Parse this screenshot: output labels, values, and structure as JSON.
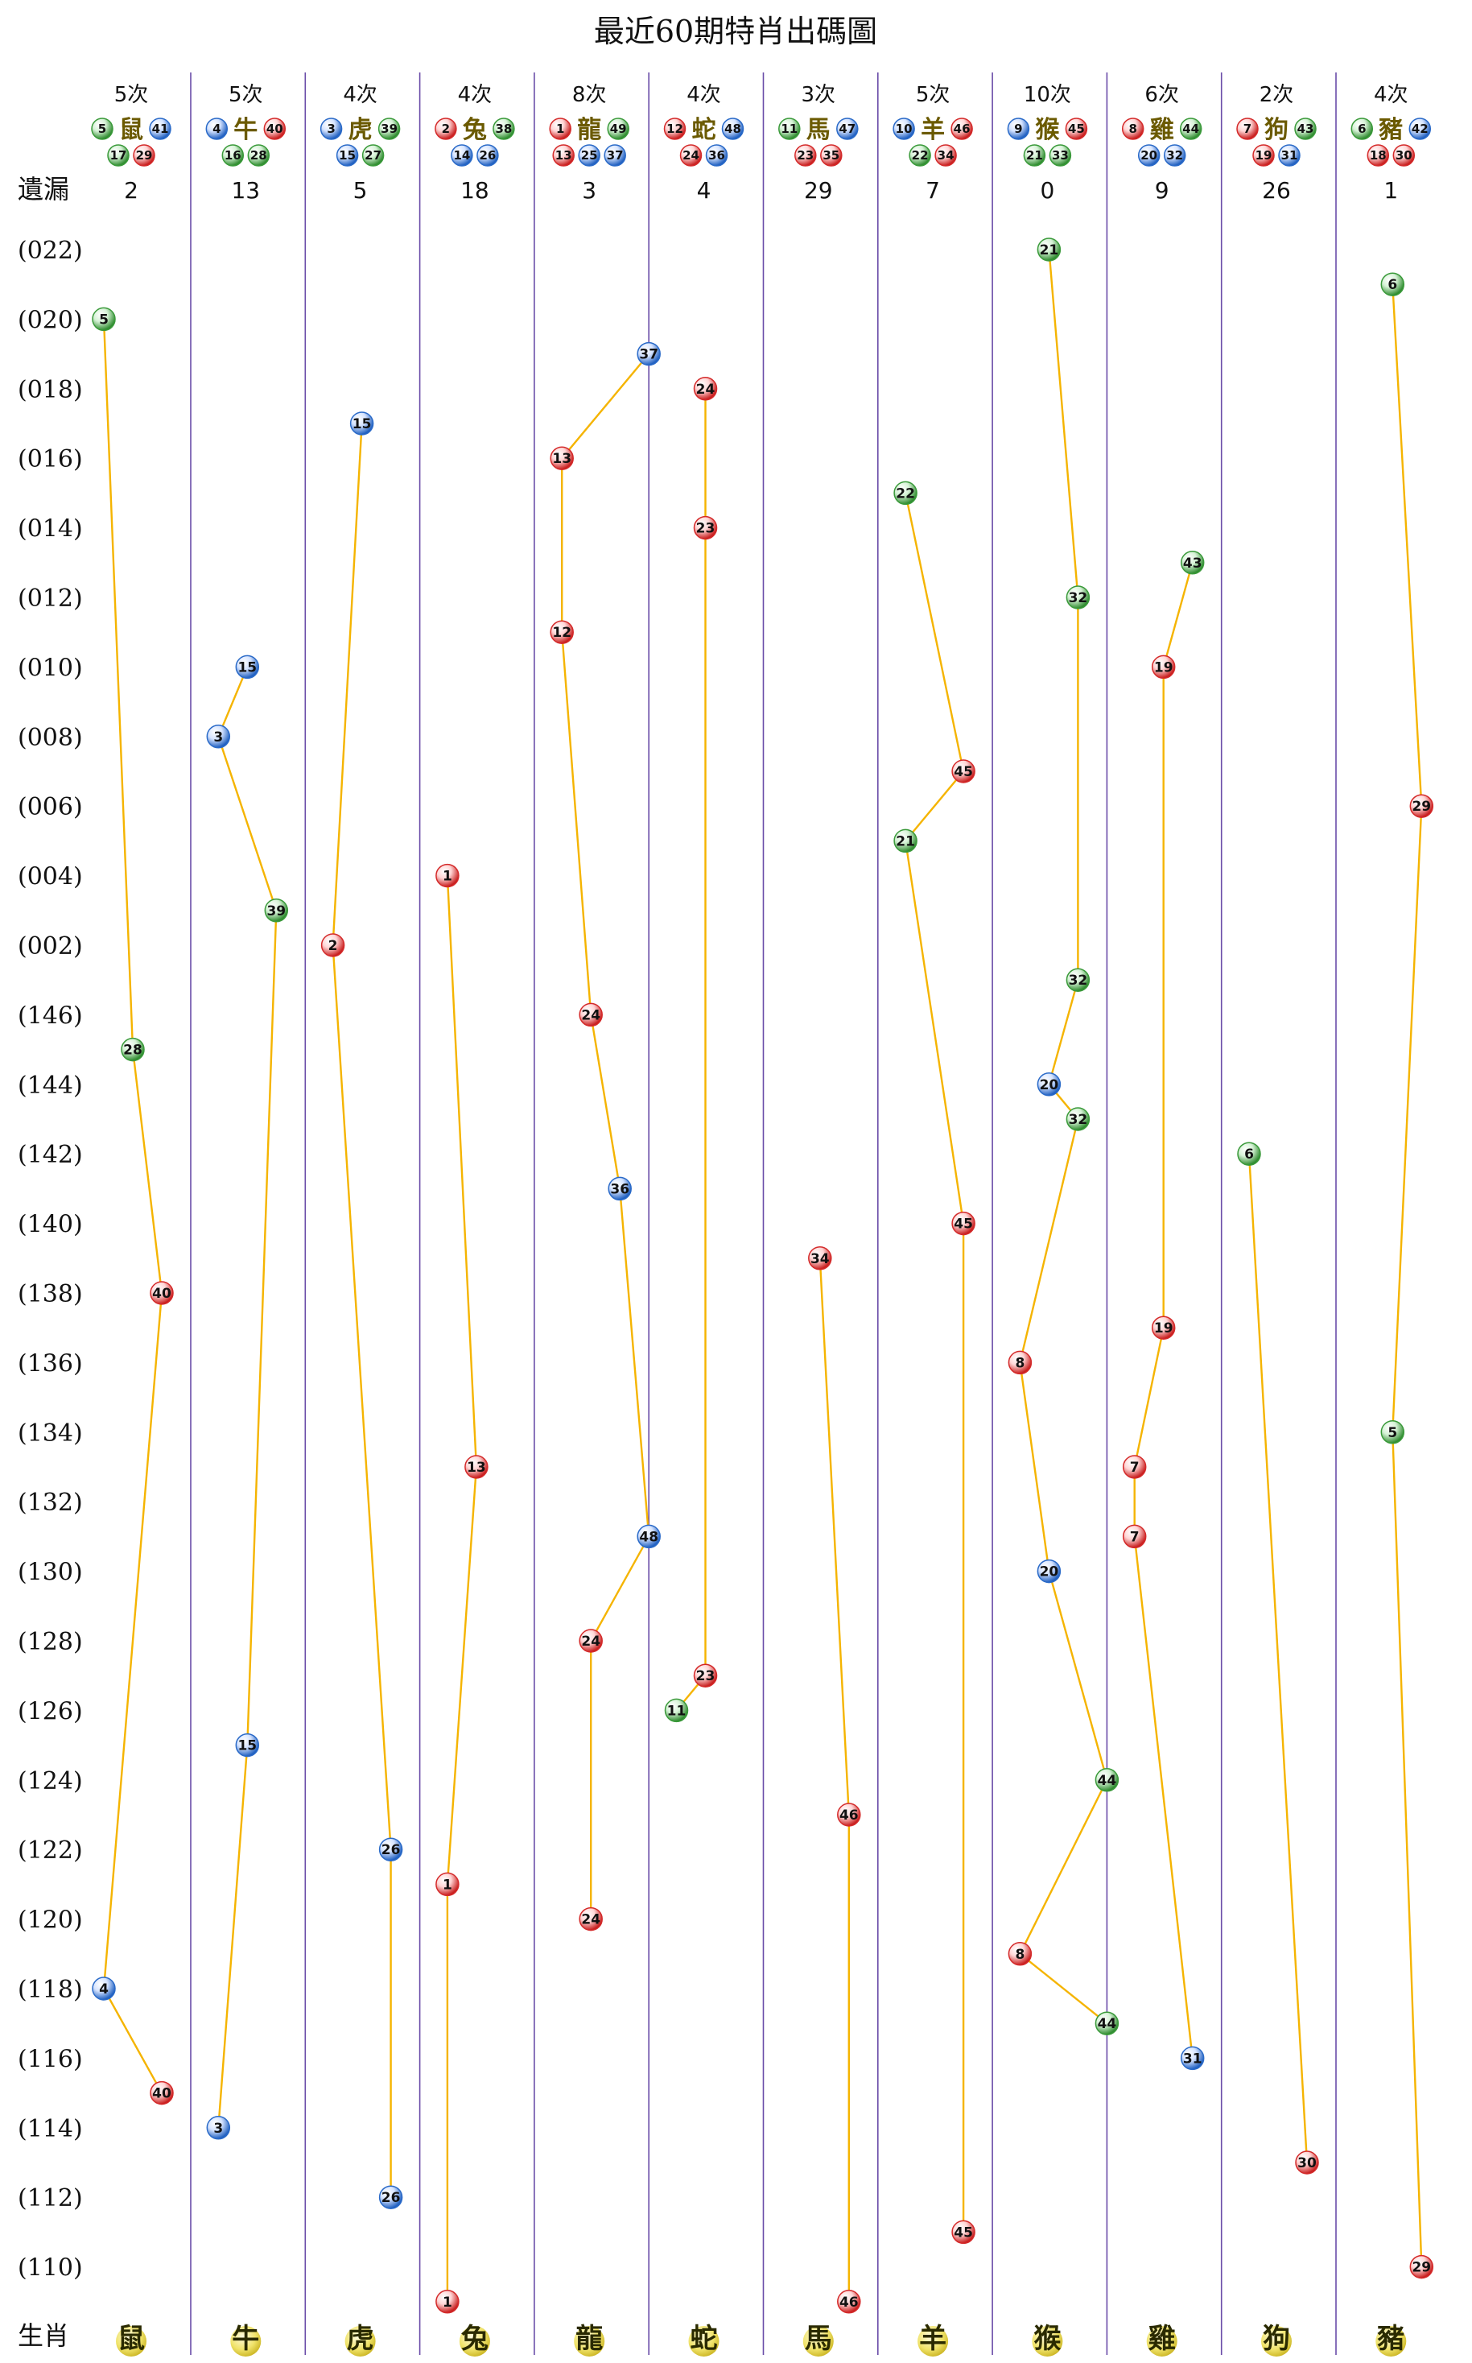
{
  "title": "最近60期特肖出碼圖",
  "omission_label": "遺漏",
  "zodiac_label": "生肖",
  "colors": {
    "line": "#f5b400",
    "divider": "#6a4ca8",
    "red": "#d42a2a",
    "green": "#3a9a3a",
    "blue": "#2a6ac8",
    "head_gold": "#d8cf60"
  },
  "chart_data": {
    "type": "scatter",
    "title": "最近60期特肖出碼圖",
    "row_labels": [
      "(022)",
      "(020)",
      "(018)",
      "(016)",
      "(014)",
      "(012)",
      "(010)",
      "(008)",
      "(006)",
      "(004)",
      "(002)",
      "(146)",
      "(144)",
      "(142)",
      "(140)",
      "(138)",
      "(136)",
      "(134)",
      "(132)",
      "(130)",
      "(128)",
      "(126)",
      "(124)",
      "(122)",
      "(120)",
      "(118)",
      "(116)",
      "(114)",
      "(112)",
      "(110)"
    ],
    "columns": [
      {
        "zodiac": "鼠",
        "count": "5次",
        "omission": "2",
        "numbers": [
          "5",
          "41",
          "17",
          "29"
        ],
        "number_colors": [
          "green",
          "blue",
          "green",
          "red"
        ],
        "points": [
          {
            "row": 2,
            "num": "5",
            "color": "green",
            "offset": 0
          },
          {
            "row": 23,
            "num": "28",
            "color": "green",
            "offset": 1
          },
          {
            "row": 30,
            "num": "40",
            "color": "red",
            "offset": 2
          },
          {
            "row": 50,
            "num": "4",
            "color": "blue",
            "offset": 0
          },
          {
            "row": 53,
            "num": "40",
            "color": "red",
            "offset": 2
          }
        ]
      },
      {
        "zodiac": "牛",
        "count": "5次",
        "omission": "13",
        "numbers": [
          "4",
          "40",
          "16",
          "28"
        ],
        "number_colors": [
          "blue",
          "red",
          "green",
          "green"
        ],
        "points": [
          {
            "row": 12,
            "num": "15",
            "color": "blue",
            "offset": 1
          },
          {
            "row": 14,
            "num": "3",
            "color": "blue",
            "offset": 0
          },
          {
            "row": 19,
            "num": "39",
            "color": "green",
            "offset": 2
          },
          {
            "row": 43,
            "num": "15",
            "color": "blue",
            "offset": 1
          },
          {
            "row": 54,
            "num": "3",
            "color": "blue",
            "offset": 0
          }
        ]
      },
      {
        "zodiac": "虎",
        "count": "4次",
        "omission": "5",
        "numbers": [
          "3",
          "39",
          "15",
          "27"
        ],
        "number_colors": [
          "blue",
          "green",
          "blue",
          "green"
        ],
        "points": [
          {
            "row": 5,
            "num": "15",
            "color": "blue",
            "offset": 1
          },
          {
            "row": 20,
            "num": "2",
            "color": "red",
            "offset": 0
          },
          {
            "row": 46,
            "num": "26",
            "color": "blue",
            "offset": 2
          },
          {
            "row": 56,
            "num": "26",
            "color": "blue",
            "offset": 2
          }
        ]
      },
      {
        "zodiac": "兔",
        "count": "4次",
        "omission": "18",
        "numbers": [
          "2",
          "38",
          "14",
          "26"
        ],
        "number_colors": [
          "red",
          "green",
          "blue",
          "blue"
        ],
        "points": [
          {
            "row": 18,
            "num": "1",
            "color": "red",
            "offset": 0
          },
          {
            "row": 35,
            "num": "13",
            "color": "red",
            "offset": 1
          },
          {
            "row": 47,
            "num": "1",
            "color": "red",
            "offset": 0
          },
          {
            "row": 59,
            "num": "1",
            "color": "red",
            "offset": 0
          }
        ]
      },
      {
        "zodiac": "龍",
        "count": "8次",
        "omission": "3",
        "numbers": [
          "1",
          "49",
          "13",
          "25",
          "37"
        ],
        "number_colors": [
          "red",
          "green",
          "red",
          "blue",
          "blue"
        ],
        "points": [
          {
            "row": 3,
            "num": "37",
            "color": "blue",
            "offset": 3
          },
          {
            "row": 6,
            "num": "13",
            "color": "red",
            "offset": 0
          },
          {
            "row": 11,
            "num": "12",
            "color": "red",
            "offset": 0
          },
          {
            "row": 22,
            "num": "24",
            "color": "red",
            "offset": 1
          },
          {
            "row": 27,
            "num": "36",
            "color": "blue",
            "offset": 2
          },
          {
            "row": 37,
            "num": "48",
            "color": "blue",
            "offset": 3
          },
          {
            "row": 40,
            "num": "24",
            "color": "red",
            "offset": 1
          },
          {
            "row": 48,
            "num": "24",
            "color": "red",
            "offset": 1
          }
        ]
      },
      {
        "zodiac": "蛇",
        "count": "4次",
        "omission": "4",
        "numbers": [
          "12",
          "48",
          "24",
          "36"
        ],
        "number_colors": [
          "red",
          "blue",
          "red",
          "blue"
        ],
        "points": [
          {
            "row": 4,
            "num": "24",
            "color": "red",
            "offset": 1
          },
          {
            "row": 8,
            "num": "23",
            "color": "red",
            "offset": 1
          },
          {
            "row": 41,
            "num": "23",
            "color": "red",
            "offset": 1
          },
          {
            "row": 42,
            "num": "11",
            "color": "green",
            "offset": 0
          }
        ]
      },
      {
        "zodiac": "馬",
        "count": "3次",
        "omission": "29",
        "numbers": [
          "11",
          "47",
          "23",
          "35"
        ],
        "number_colors": [
          "green",
          "blue",
          "red",
          "red"
        ],
        "points": [
          {
            "row": 29,
            "num": "34",
            "color": "red",
            "offset": 1
          },
          {
            "row": 45,
            "num": "46",
            "color": "red",
            "offset": 2
          },
          {
            "row": 59,
            "num": "46",
            "color": "red",
            "offset": 2
          }
        ]
      },
      {
        "zodiac": "羊",
        "count": "5次",
        "omission": "7",
        "numbers": [
          "10",
          "46",
          "22",
          "34"
        ],
        "number_colors": [
          "blue",
          "red",
          "green",
          "red"
        ],
        "points": [
          {
            "row": 7,
            "num": "22",
            "color": "green",
            "offset": 0
          },
          {
            "row": 15,
            "num": "45",
            "color": "red",
            "offset": 2
          },
          {
            "row": 17,
            "num": "21",
            "color": "green",
            "offset": 0
          },
          {
            "row": 28,
            "num": "45",
            "color": "red",
            "offset": 2
          },
          {
            "row": 57,
            "num": "45",
            "color": "red",
            "offset": 2
          }
        ]
      },
      {
        "zodiac": "猴",
        "count": "10次",
        "omission": "0",
        "numbers": [
          "9",
          "45",
          "21",
          "33"
        ],
        "number_colors": [
          "blue",
          "red",
          "green",
          "green"
        ],
        "points": [
          {
            "row": 0,
            "num": "21",
            "color": "green",
            "offset": 1
          },
          {
            "row": 10,
            "num": "32",
            "color": "green",
            "offset": 2
          },
          {
            "row": 21,
            "num": "32",
            "color": "green",
            "offset": 2
          },
          {
            "row": 24,
            "num": "20",
            "color": "blue",
            "offset": 1
          },
          {
            "row": 25,
            "num": "32",
            "color": "green",
            "offset": 2
          },
          {
            "row": 32,
            "num": "8",
            "color": "red",
            "offset": 0
          },
          {
            "row": 38,
            "num": "20",
            "color": "blue",
            "offset": 1
          },
          {
            "row": 44,
            "num": "44",
            "color": "green",
            "offset": 3
          },
          {
            "row": 49,
            "num": "8",
            "color": "red",
            "offset": 0
          },
          {
            "row": 51,
            "num": "44",
            "color": "green",
            "offset": 3
          }
        ]
      },
      {
        "zodiac": "雞",
        "count": "6次",
        "omission": "9",
        "numbers": [
          "8",
          "44",
          "20",
          "32"
        ],
        "number_colors": [
          "red",
          "green",
          "blue",
          "blue"
        ],
        "points": [
          {
            "row": 9,
            "num": "43",
            "color": "green",
            "offset": 2
          },
          {
            "row": 12,
            "num": "19",
            "color": "red",
            "offset": 1
          },
          {
            "row": 31,
            "num": "19",
            "color": "red",
            "offset": 1
          },
          {
            "row": 35,
            "num": "7",
            "color": "red",
            "offset": 0
          },
          {
            "row": 37,
            "num": "7",
            "color": "red",
            "offset": 0
          },
          {
            "row": 52,
            "num": "31",
            "color": "blue",
            "offset": 2
          }
        ]
      },
      {
        "zodiac": "狗",
        "count": "2次",
        "omission": "26",
        "numbers": [
          "7",
          "43",
          "19",
          "31"
        ],
        "number_colors": [
          "red",
          "green",
          "red",
          "blue"
        ],
        "points": [
          {
            "row": 26,
            "num": "6",
            "color": "green",
            "offset": 0
          },
          {
            "row": 55,
            "num": "30",
            "color": "red",
            "offset": 2
          }
        ]
      },
      {
        "zodiac": "豬",
        "count": "4次",
        "omission": "1",
        "numbers": [
          "6",
          "42",
          "18",
          "30"
        ],
        "number_colors": [
          "green",
          "blue",
          "red",
          "red"
        ],
        "points": [
          {
            "row": 1,
            "num": "6",
            "color": "green",
            "offset": 1
          },
          {
            "row": 16,
            "num": "29",
            "color": "red",
            "offset": 2
          },
          {
            "row": 34,
            "num": "5",
            "color": "green",
            "offset": 1
          },
          {
            "row": 58,
            "num": "29",
            "color": "red",
            "offset": 2
          }
        ]
      }
    ]
  }
}
